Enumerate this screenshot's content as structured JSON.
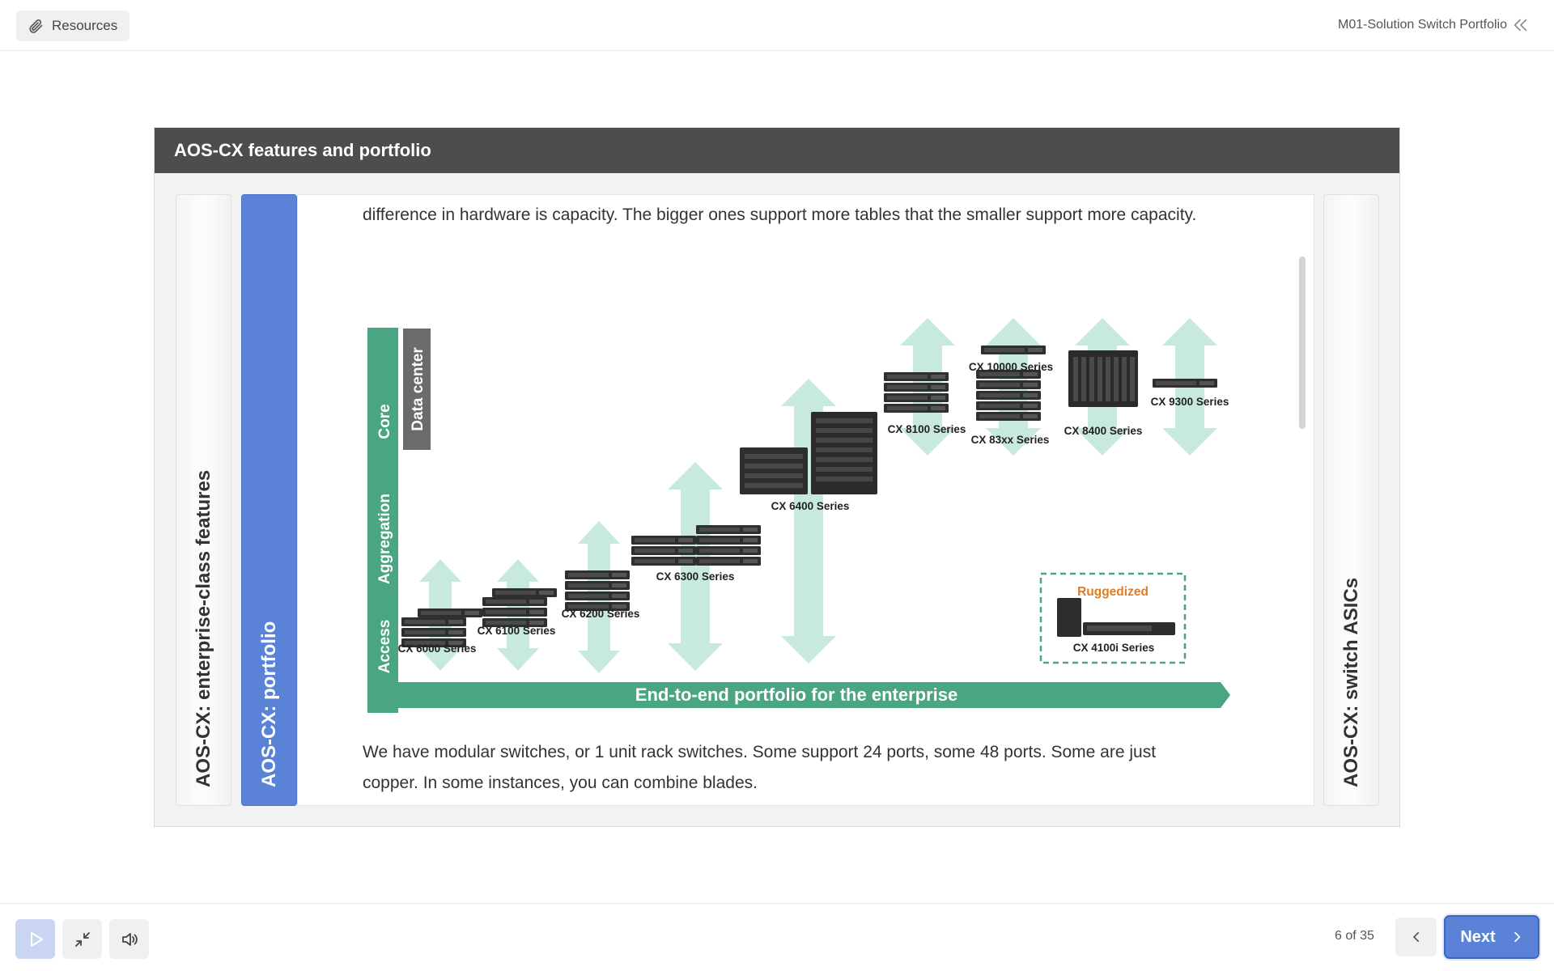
{
  "header": {
    "resources_label": "Resources",
    "course_title": "M01-Solution Switch Portfolio"
  },
  "slide": {
    "title": "AOS-CX features and portfolio",
    "tabs": [
      {
        "label": "AOS-CX: enterprise-class features"
      },
      {
        "label": "AOS-CX: portfolio"
      },
      {
        "label": "AOS-CX: switch ASICs"
      }
    ],
    "paragraph_top": "difference in hardware is capacity. The bigger ones support more tables that the smaller support more capacity.",
    "paragraph_bottom": "We have modular switches, or 1 unit rack switches. Some support 24 ports, some 48 ports. Some are just copper. In some instances, you can combine blades."
  },
  "diagram": {
    "axis_label": "End-to-end portfolio for the enterprise",
    "layers": [
      "Access",
      "Aggregation",
      "Core"
    ],
    "data_center_label": "Data center",
    "ruggedized_label": "Ruggedized",
    "series": [
      "CX 6000 Series",
      "CX 6100 Series",
      "CX 6200 Series",
      "CX 6300 Series",
      "CX 6400 Series",
      "CX 8100 Series",
      "CX 10000 Series",
      "CX 83xx Series",
      "CX 8400 Series",
      "CX 9300 Series",
      "CX 4100i Series"
    ],
    "colors": {
      "green": "#4aa582",
      "arrow": "#c8e9df",
      "datacenter": "#6b6b6b",
      "ruggedized": "#e07b28"
    }
  },
  "footer": {
    "page_count": "6 of 35",
    "next_label": "Next"
  }
}
